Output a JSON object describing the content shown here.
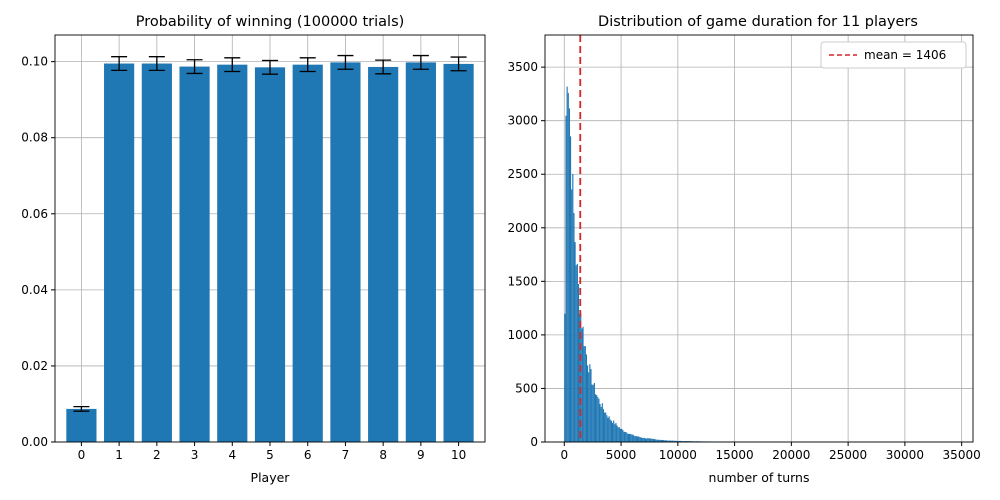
{
  "chart_data": [
    {
      "type": "bar",
      "title": "Probability of winning (100000 trials)",
      "xlabel": "Player",
      "ylabel": "",
      "categories": [
        "0",
        "1",
        "2",
        "3",
        "4",
        "5",
        "6",
        "7",
        "8",
        "9",
        "10"
      ],
      "values": [
        0.0087,
        0.0995,
        0.0995,
        0.0987,
        0.0992,
        0.0985,
        0.0992,
        0.0998,
        0.0986,
        0.0998,
        0.0994
      ],
      "errors": [
        0.0006,
        0.0018,
        0.0018,
        0.0018,
        0.0018,
        0.0018,
        0.0018,
        0.0018,
        0.0018,
        0.0018,
        0.0018
      ],
      "ylim": [
        0,
        0.107
      ],
      "yticks": [
        "0.00",
        "0.02",
        "0.04",
        "0.06",
        "0.08",
        "0.10"
      ],
      "grid": true,
      "bar_color": "#1f77b4"
    },
    {
      "type": "bar",
      "title": "Distribution of game duration for 11 players",
      "xlabel": "number of turns",
      "ylabel": "",
      "xlim": [
        -1700,
        36000
      ],
      "ylim": [
        0,
        3800
      ],
      "xticks": [
        "0",
        "5000",
        "10000",
        "15000",
        "20000",
        "25000",
        "30000",
        "35000"
      ],
      "yticks": [
        "0",
        "500",
        "1000",
        "1500",
        "2000",
        "2500",
        "3000",
        "3500"
      ],
      "bin_width": 100,
      "histogram_envelope": [
        [
          0,
          0
        ],
        [
          100,
          2400
        ],
        [
          200,
          3620
        ],
        [
          300,
          3570
        ],
        [
          400,
          3300
        ],
        [
          500,
          3000
        ],
        [
          600,
          2700
        ],
        [
          700,
          2450
        ],
        [
          800,
          2200
        ],
        [
          900,
          2000
        ],
        [
          1000,
          1800
        ],
        [
          1100,
          1650
        ],
        [
          1200,
          1500
        ],
        [
          1300,
          1360
        ],
        [
          1400,
          1250
        ],
        [
          1500,
          1160
        ],
        [
          1600,
          1080
        ],
        [
          1700,
          1000
        ],
        [
          1800,
          920
        ],
        [
          1900,
          850
        ],
        [
          2000,
          790
        ],
        [
          2200,
          690
        ],
        [
          2400,
          600
        ],
        [
          2600,
          520
        ],
        [
          2800,
          460
        ],
        [
          3000,
          400
        ],
        [
          3300,
          340
        ],
        [
          3600,
          280
        ],
        [
          4000,
          220
        ],
        [
          4500,
          170
        ],
        [
          5000,
          120
        ],
        [
          5500,
          90
        ],
        [
          6000,
          65
        ],
        [
          6500,
          50
        ],
        [
          7000,
          38
        ],
        [
          8000,
          25
        ],
        [
          9000,
          15
        ],
        [
          10000,
          10
        ],
        [
          12000,
          6
        ],
        [
          15000,
          3
        ],
        [
          18000,
          1.5
        ],
        [
          20000,
          0.6
        ],
        [
          22000,
          0
        ]
      ],
      "mean_line": {
        "value": 1406,
        "label": "mean = 1406",
        "color": "#d62728",
        "style": "dashed"
      },
      "legend_position": "top-right",
      "grid": true,
      "bar_color": "#1f77b4"
    }
  ]
}
